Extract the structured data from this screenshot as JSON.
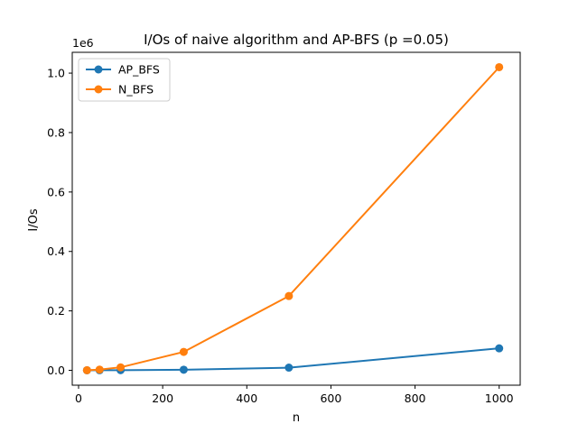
{
  "chart_data": {
    "type": "line",
    "title": "I/Os of naive algorithm and AP-BFS (p =0.05)",
    "xlabel": "n",
    "ylabel": "I/Os",
    "y_offset_label": "1e6",
    "xlim": [
      -15,
      1050
    ],
    "ylim": [
      -0.05,
      1.07
    ],
    "x_ticks": [
      0,
      200,
      400,
      600,
      800,
      1000
    ],
    "x_tick_labels": [
      "0",
      "200",
      "400",
      "600",
      "800",
      "1000"
    ],
    "y_ticks": [
      0.0,
      0.2,
      0.4,
      0.6,
      0.8,
      1.0
    ],
    "y_tick_labels": [
      "0.0",
      "0.2",
      "0.4",
      "0.6",
      "0.8",
      "1.0"
    ],
    "grid": false,
    "legend_position": "top-left",
    "x": [
      20,
      50,
      100,
      250,
      500,
      1000
    ],
    "series": [
      {
        "name": "AP_BFS",
        "color": "#1f77b4",
        "values": [
          0.0002,
          0.0004,
          0.0005,
          0.002,
          0.009,
          0.074
        ]
      },
      {
        "name": "N_BFS",
        "color": "#ff7f0e",
        "values": [
          0.0004,
          0.0025,
          0.01,
          0.062,
          0.25,
          1.02
        ]
      }
    ]
  }
}
